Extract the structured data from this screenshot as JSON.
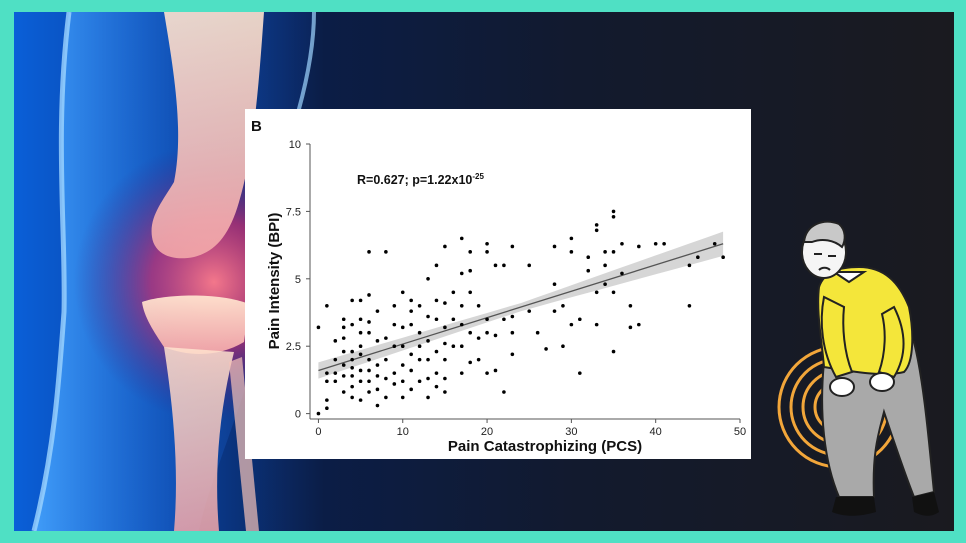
{
  "colors": {
    "border": "#4fe0c4",
    "background_dark": "#1a1a1f",
    "knee_glow": "#ff5a70",
    "shirt": "#f4e63a",
    "pants": "#a9a9a9",
    "pain_rings": "#f2a63a"
  },
  "illustrations": {
    "left": "knee-xray-illustration",
    "right": "elderly-man-knee-pain-illustration"
  },
  "chart_data": {
    "type": "scatter",
    "panel_label": "B",
    "annotation": "R=0.627; p=1.22x10",
    "annotation_exponent": "-25",
    "xlabel": "Pain Catastrophizing (PCS)",
    "ylabel": "Pain Intensity (BPI)",
    "xlim": [
      -1,
      50
    ],
    "ylim": [
      -0.2,
      10
    ],
    "x_ticks": [
      0,
      10,
      20,
      30,
      40,
      50
    ],
    "x_tick_labels": [
      "0",
      "10",
      "20",
      "30",
      "40",
      "50"
    ],
    "y_ticks": [
      0,
      2.5,
      5,
      7.5,
      10
    ],
    "y_tick_labels": [
      "0",
      "2.5",
      "5",
      "7.5",
      "10"
    ],
    "grid": false,
    "regression": {
      "x": [
        0,
        48
      ],
      "y": [
        1.6,
        6.3
      ],
      "ci_start": 0.3,
      "ci_mid": 0.15,
      "ci_end": 0.45
    },
    "points": [
      [
        0,
        0
      ],
      [
        0,
        3.2
      ],
      [
        1,
        0.2
      ],
      [
        1,
        0.5
      ],
      [
        1,
        1.2
      ],
      [
        1,
        1.5
      ],
      [
        1,
        4
      ],
      [
        2,
        1.2
      ],
      [
        2,
        1.5
      ],
      [
        2,
        2
      ],
      [
        2,
        2.7
      ],
      [
        3,
        0.8
      ],
      [
        3,
        1.4
      ],
      [
        3,
        1.8
      ],
      [
        3,
        2.3
      ],
      [
        3,
        2.8
      ],
      [
        3,
        3.2
      ],
      [
        3,
        3.5
      ],
      [
        4,
        0.6
      ],
      [
        4,
        1
      ],
      [
        4,
        1.4
      ],
      [
        4,
        1.7
      ],
      [
        4,
        2
      ],
      [
        4,
        2.3
      ],
      [
        4,
        3.3
      ],
      [
        4,
        4.2
      ],
      [
        5,
        0.5
      ],
      [
        5,
        1.2
      ],
      [
        5,
        1.6
      ],
      [
        5,
        2.2
      ],
      [
        5,
        2.5
      ],
      [
        5,
        3
      ],
      [
        5,
        3.5
      ],
      [
        5,
        4.2
      ],
      [
        6,
        0.8
      ],
      [
        6,
        1.2
      ],
      [
        6,
        1.6
      ],
      [
        6,
        2
      ],
      [
        6,
        3
      ],
      [
        6,
        3.4
      ],
      [
        6,
        4.4
      ],
      [
        6,
        6
      ],
      [
        7,
        0.3
      ],
      [
        7,
        0.9
      ],
      [
        7,
        1.4
      ],
      [
        7,
        1.8
      ],
      [
        7,
        2.7
      ],
      [
        7,
        3.8
      ],
      [
        8,
        0.6
      ],
      [
        8,
        1.3
      ],
      [
        8,
        2
      ],
      [
        8,
        2.8
      ],
      [
        8,
        6
      ],
      [
        9,
        1.1
      ],
      [
        9,
        1.5
      ],
      [
        9,
        2.5
      ],
      [
        9,
        3.3
      ],
      [
        9,
        4
      ],
      [
        10,
        0.6
      ],
      [
        10,
        1.2
      ],
      [
        10,
        1.8
      ],
      [
        10,
        2.5
      ],
      [
        10,
        3.2
      ],
      [
        10,
        4.5
      ],
      [
        11,
        0.9
      ],
      [
        11,
        1.6
      ],
      [
        11,
        2.2
      ],
      [
        11,
        3.3
      ],
      [
        11,
        3.8
      ],
      [
        11,
        4.2
      ],
      [
        12,
        1.2
      ],
      [
        12,
        2
      ],
      [
        12,
        2.5
      ],
      [
        12,
        3
      ],
      [
        12,
        4
      ],
      [
        13,
        0.6
      ],
      [
        13,
        1.3
      ],
      [
        13,
        2
      ],
      [
        13,
        2.7
      ],
      [
        13,
        3.6
      ],
      [
        13,
        5
      ],
      [
        14,
        1
      ],
      [
        14,
        1.5
      ],
      [
        14,
        2.3
      ],
      [
        14,
        3.5
      ],
      [
        14,
        4.2
      ],
      [
        14,
        5.5
      ],
      [
        15,
        0.8
      ],
      [
        15,
        1.3
      ],
      [
        15,
        2
      ],
      [
        15,
        2.6
      ],
      [
        15,
        3.2
      ],
      [
        15,
        4.1
      ],
      [
        15,
        6.2
      ],
      [
        16,
        2.5
      ],
      [
        16,
        3.5
      ],
      [
        16,
        4.5
      ],
      [
        17,
        1.5
      ],
      [
        17,
        2.5
      ],
      [
        17,
        3.3
      ],
      [
        17,
        4
      ],
      [
        17,
        5.2
      ],
      [
        17,
        6.5
      ],
      [
        18,
        1.9
      ],
      [
        18,
        3
      ],
      [
        18,
        4.5
      ],
      [
        18,
        5.3
      ],
      [
        18,
        6
      ],
      [
        19,
        2
      ],
      [
        19,
        2.8
      ],
      [
        19,
        4
      ],
      [
        20,
        1.5
      ],
      [
        20,
        3
      ],
      [
        20,
        3.5
      ],
      [
        20,
        6
      ],
      [
        20,
        6.3
      ],
      [
        21,
        1.6
      ],
      [
        21,
        2.9
      ],
      [
        21,
        5.5
      ],
      [
        22,
        0.8
      ],
      [
        22,
        3.5
      ],
      [
        22,
        5.5
      ],
      [
        23,
        2.2
      ],
      [
        23,
        3
      ],
      [
        23,
        3.6
      ],
      [
        23,
        6.2
      ],
      [
        25,
        3.8
      ],
      [
        25,
        5.5
      ],
      [
        26,
        3
      ],
      [
        27,
        2.4
      ],
      [
        28,
        3.8
      ],
      [
        28,
        4.8
      ],
      [
        28,
        6.2
      ],
      [
        29,
        2.5
      ],
      [
        29,
        4
      ],
      [
        30,
        3.3
      ],
      [
        30,
        6
      ],
      [
        30,
        6.5
      ],
      [
        31,
        1.5
      ],
      [
        31,
        3.5
      ],
      [
        32,
        5.3
      ],
      [
        32,
        5.8
      ],
      [
        33,
        3.3
      ],
      [
        33,
        4.5
      ],
      [
        33,
        6.8
      ],
      [
        33,
        7
      ],
      [
        34,
        4.8
      ],
      [
        34,
        5.5
      ],
      [
        34,
        6
      ],
      [
        35,
        2.3
      ],
      [
        35,
        4.5
      ],
      [
        35,
        6
      ],
      [
        35,
        7.3
      ],
      [
        35,
        7.5
      ],
      [
        36,
        5.2
      ],
      [
        36,
        6.3
      ],
      [
        37,
        3.2
      ],
      [
        37,
        4
      ],
      [
        38,
        3.3
      ],
      [
        38,
        6.2
      ],
      [
        40,
        6.3
      ],
      [
        41,
        6.3
      ],
      [
        44,
        4
      ],
      [
        44,
        5.5
      ],
      [
        45,
        5.8
      ],
      [
        47,
        6.3
      ],
      [
        48,
        5.8
      ]
    ]
  }
}
